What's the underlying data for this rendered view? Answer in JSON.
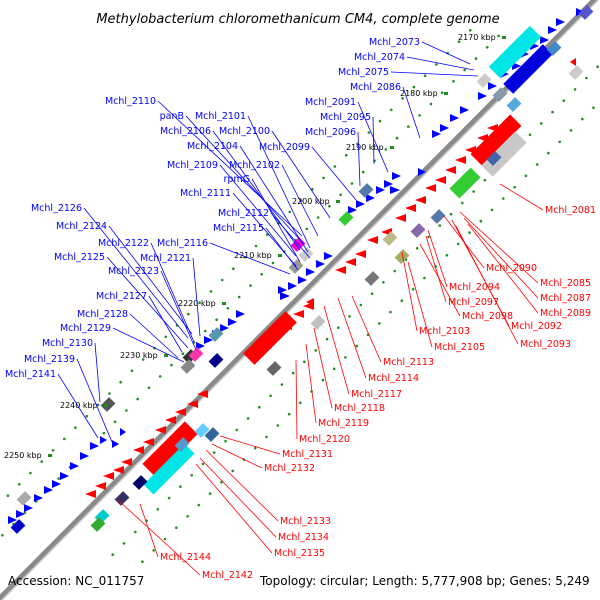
{
  "title": "Methylobacterium chloromethanicum CM4, complete genome",
  "footer": {
    "accession": "Accession: NC_011757",
    "info": "Topology: circular; Length: 5,777,908 bp; Genes: 5,249"
  },
  "colors": {
    "forward": "#0000ff",
    "reverse": "#ff0000",
    "backbone": "#888888",
    "tick": "#228b22"
  },
  "ticks": [
    "2170 kbp",
    "2180 kbp",
    "2190 kbp",
    "2200 kbp",
    "2210 kbp",
    "2220 kbp",
    "2230 kbp",
    "2240 kbp",
    "2250 kbp"
  ],
  "forward_labels": [
    "Mchl_2073",
    "Mchl_2074",
    "Mchl_2075",
    "Mchl_2086",
    "Mchl_2091",
    "Mchl_2095",
    "Mchl_2096",
    "Mchl_2099",
    "Mchl_2110",
    "panB",
    "Mchl_2101",
    "Mchl_2106",
    "Mchl_2100",
    "Mchl_2104",
    "Mchl_2109",
    "Mchl_2102",
    "rpmG",
    "Mchl_2111",
    "Mchl_2112",
    "Mchl_2115",
    "Mchl_2116",
    "Mchl_2126",
    "Mchl_2124",
    "Mchl_2122",
    "Mchl_2121",
    "Mchl_2125",
    "Mchl_2123",
    "Mchl_2127",
    "Mchl_2128",
    "Mchl_2129",
    "Mchl_2130",
    "Mchl_2139",
    "Mchl_2141"
  ],
  "reverse_labels": [
    "Mchl_2081",
    "Mchl_2090",
    "Mchl_2085",
    "Mchl_2094",
    "Mchl_2087",
    "Mchl_2097",
    "Mchl_2089",
    "Mchl_2098",
    "Mchl_2092",
    "Mchl_2103",
    "Mchl_2093",
    "Mchl_2105",
    "Mchl_2113",
    "Mchl_2114",
    "Mchl_2117",
    "Mchl_2118",
    "Mchl_2119",
    "Mchl_2120",
    "Mchl_2131",
    "Mchl_2132",
    "Mchl_2133",
    "Mchl_2134",
    "Mchl_2135",
    "Mchl_2144",
    "Mchl_2142"
  ]
}
